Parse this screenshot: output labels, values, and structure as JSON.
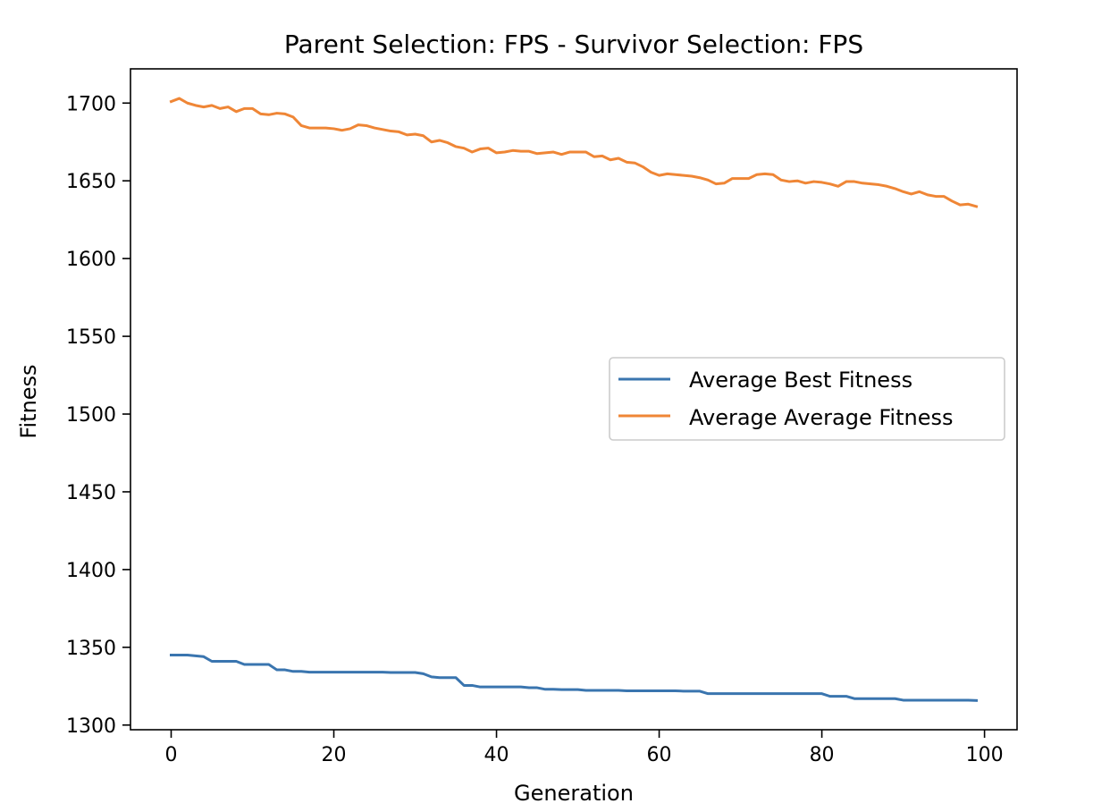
{
  "chart_data": {
    "type": "line",
    "title": "Parent Selection: FPS - Survivor Selection: FPS",
    "xlabel": "Generation",
    "ylabel": "Fitness",
    "xlim": [
      -5,
      104
    ],
    "ylim": [
      1297,
      1722
    ],
    "xticks": [
      0,
      20,
      40,
      60,
      80,
      100
    ],
    "yticks": [
      1300,
      1350,
      1400,
      1450,
      1500,
      1550,
      1600,
      1650,
      1700
    ],
    "grid": false,
    "legend_position": "right",
    "series": [
      {
        "name": "Average Best Fitness",
        "color": "#3a75af",
        "x": [
          0,
          1,
          2,
          3,
          4,
          5,
          6,
          7,
          8,
          9,
          10,
          11,
          12,
          13,
          14,
          15,
          16,
          17,
          18,
          19,
          20,
          21,
          22,
          23,
          24,
          25,
          26,
          27,
          28,
          29,
          30,
          31,
          32,
          33,
          34,
          35,
          36,
          37,
          38,
          39,
          40,
          41,
          42,
          43,
          44,
          45,
          46,
          47,
          48,
          49,
          50,
          51,
          52,
          53,
          54,
          55,
          56,
          57,
          58,
          59,
          60,
          61,
          62,
          63,
          64,
          65,
          66,
          67,
          68,
          69,
          70,
          71,
          72,
          73,
          74,
          75,
          76,
          77,
          78,
          79,
          80,
          81,
          82,
          83,
          84,
          85,
          86,
          87,
          88,
          89,
          90,
          91,
          92,
          93,
          94,
          95,
          96,
          97,
          98,
          99
        ],
        "values": [
          1345,
          1345,
          1345,
          1344.5,
          1344,
          1341,
          1341,
          1341,
          1341,
          1339,
          1339,
          1339,
          1339,
          1335.5,
          1335.5,
          1334.5,
          1334.5,
          1334,
          1334,
          1334,
          1334,
          1334,
          1334,
          1334,
          1334,
          1334,
          1334,
          1333.8,
          1333.8,
          1333.8,
          1333.8,
          1333,
          1331,
          1330.5,
          1330.5,
          1330.5,
          1325.5,
          1325.5,
          1324.5,
          1324.5,
          1324.5,
          1324.5,
          1324.5,
          1324.5,
          1324,
          1324,
          1323,
          1323,
          1322.8,
          1322.8,
          1322.8,
          1322.3,
          1322.3,
          1322.3,
          1322.3,
          1322.3,
          1322,
          1322,
          1322,
          1322,
          1322,
          1322,
          1322,
          1321.8,
          1321.8,
          1321.8,
          1320.2,
          1320.2,
          1320.2,
          1320.2,
          1320.2,
          1320.2,
          1320.2,
          1320.2,
          1320.2,
          1320.2,
          1320.2,
          1320.2,
          1320.2,
          1320.2,
          1320.2,
          1318.5,
          1318.5,
          1318.5,
          1317,
          1317,
          1317,
          1317,
          1317,
          1317,
          1316,
          1316,
          1316,
          1316,
          1316,
          1316,
          1316,
          1316,
          1316,
          1315.8
        ]
      },
      {
        "name": "Average Average Fitness",
        "color": "#ef8636",
        "x": [
          0,
          1,
          2,
          3,
          4,
          5,
          6,
          7,
          8,
          9,
          10,
          11,
          12,
          13,
          14,
          15,
          16,
          17,
          18,
          19,
          20,
          21,
          22,
          23,
          24,
          25,
          26,
          27,
          28,
          29,
          30,
          31,
          32,
          33,
          34,
          35,
          36,
          37,
          38,
          39,
          40,
          41,
          42,
          43,
          44,
          45,
          46,
          47,
          48,
          49,
          50,
          51,
          52,
          53,
          54,
          55,
          56,
          57,
          58,
          59,
          60,
          61,
          62,
          63,
          64,
          65,
          66,
          67,
          68,
          69,
          70,
          71,
          72,
          73,
          74,
          75,
          76,
          77,
          78,
          79,
          80,
          81,
          82,
          83,
          84,
          85,
          86,
          87,
          88,
          89,
          90,
          91,
          92,
          93,
          94,
          95,
          96,
          97,
          98,
          99
        ],
        "values": [
          1701,
          1703,
          1700,
          1698.5,
          1697.5,
          1698.5,
          1696.5,
          1697.5,
          1694.5,
          1696.5,
          1696.5,
          1693,
          1692.5,
          1693.5,
          1693,
          1691,
          1685.5,
          1684,
          1684,
          1684,
          1683.5,
          1682.5,
          1683.5,
          1686,
          1685.5,
          1684,
          1683,
          1682,
          1681.5,
          1679.5,
          1680,
          1679,
          1675,
          1676,
          1674.5,
          1672,
          1671,
          1668.5,
          1670.5,
          1671,
          1668,
          1668.5,
          1669.5,
          1669,
          1669,
          1667.5,
          1668,
          1668.5,
          1667,
          1668.5,
          1668.5,
          1668.5,
          1665.5,
          1666,
          1663.5,
          1664.5,
          1662,
          1661.5,
          1659,
          1655.5,
          1653.5,
          1654.5,
          1654,
          1653.5,
          1653,
          1652,
          1650.5,
          1648,
          1648.5,
          1651.5,
          1651.5,
          1651.5,
          1654,
          1654.5,
          1654,
          1650.5,
          1649.5,
          1650,
          1648.5,
          1649.5,
          1649,
          1648,
          1646.5,
          1649.5,
          1649.5,
          1648.5,
          1648,
          1647.5,
          1646.5,
          1645,
          1643,
          1641.5,
          1643,
          1641,
          1640,
          1640,
          1637,
          1634.5,
          1635,
          1633.5
        ]
      }
    ]
  }
}
